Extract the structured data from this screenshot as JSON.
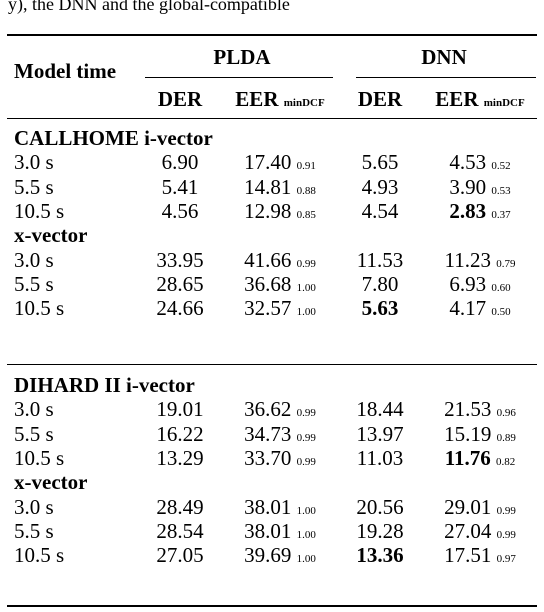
{
  "caption_fragment": "y), the DNN and the global-compatible",
  "header": {
    "row_label": "Model time",
    "groups": [
      "PLDA",
      "DNN"
    ],
    "der": "DER",
    "eer": "EER",
    "mindcf": "minDCF"
  },
  "sections": [
    {
      "title": "CALLHOME i-vector",
      "rows": [
        {
          "time": "3.0 s",
          "plda_der": "6.90",
          "plda_eer": "17.40",
          "plda_dcf": "0.91",
          "dnn_der": "5.65",
          "dnn_eer": "4.53",
          "dnn_dcf": "0.52"
        },
        {
          "time": "5.5 s",
          "plda_der": "5.41",
          "plda_eer": "14.81",
          "plda_dcf": "0.88",
          "dnn_der": "4.93",
          "dnn_eer": "3.90",
          "dnn_dcf": "0.53"
        },
        {
          "time": "10.5 s",
          "plda_der": "4.56",
          "plda_eer": "12.98",
          "plda_dcf": "0.85",
          "dnn_der": "4.54",
          "dnn_eer": "2.83",
          "dnn_dcf": "0.37"
        }
      ],
      "sub_title": "x-vector",
      "sub_rows": [
        {
          "time": "3.0 s",
          "plda_der": "33.95",
          "plda_eer": "41.66",
          "plda_dcf": "0.99",
          "dnn_der": "11.53",
          "dnn_eer": "11.23",
          "dnn_dcf": "0.79"
        },
        {
          "time": "5.5 s",
          "plda_der": "28.65",
          "plda_eer": "36.68",
          "plda_dcf": "1.00",
          "dnn_der": "7.80",
          "dnn_eer": "6.93",
          "dnn_dcf": "0.60"
        },
        {
          "time": "10.5 s",
          "plda_der": "24.66",
          "plda_eer": "32.57",
          "plda_dcf": "1.00",
          "dnn_der": "5.63",
          "dnn_eer": "4.17",
          "dnn_dcf": "0.50"
        }
      ]
    },
    {
      "title": "DIHARD II i-vector",
      "rows": [
        {
          "time": "3.0 s",
          "plda_der": "19.01",
          "plda_eer": "36.62",
          "plda_dcf": "0.99",
          "dnn_der": "18.44",
          "dnn_eer": "21.53",
          "dnn_dcf": "0.96"
        },
        {
          "time": "5.5 s",
          "plda_der": "16.22",
          "plda_eer": "34.73",
          "plda_dcf": "0.99",
          "dnn_der": "13.97",
          "dnn_eer": "15.19",
          "dnn_dcf": "0.89"
        },
        {
          "time": "10.5 s",
          "plda_der": "13.29",
          "plda_eer": "33.70",
          "plda_dcf": "0.99",
          "dnn_der": "11.03",
          "dnn_eer": "11.76",
          "dnn_dcf": "0.82"
        }
      ],
      "sub_title": "x-vector",
      "sub_rows": [
        {
          "time": "3.0 s",
          "plda_der": "28.49",
          "plda_eer": "38.01",
          "plda_dcf": "1.00",
          "dnn_der": "20.56",
          "dnn_eer": "29.01",
          "dnn_dcf": "0.99"
        },
        {
          "time": "5.5 s",
          "plda_der": "28.54",
          "plda_eer": "38.01",
          "plda_dcf": "1.00",
          "dnn_der": "19.28",
          "dnn_eer": "27.04",
          "dnn_dcf": "0.99"
        },
        {
          "time": "10.5 s",
          "plda_der": "27.05",
          "plda_eer": "39.69",
          "plda_dcf": "1.00",
          "dnn_der": "13.36",
          "dnn_eer": "17.51",
          "dnn_dcf": "0.97"
        }
      ]
    }
  ]
}
